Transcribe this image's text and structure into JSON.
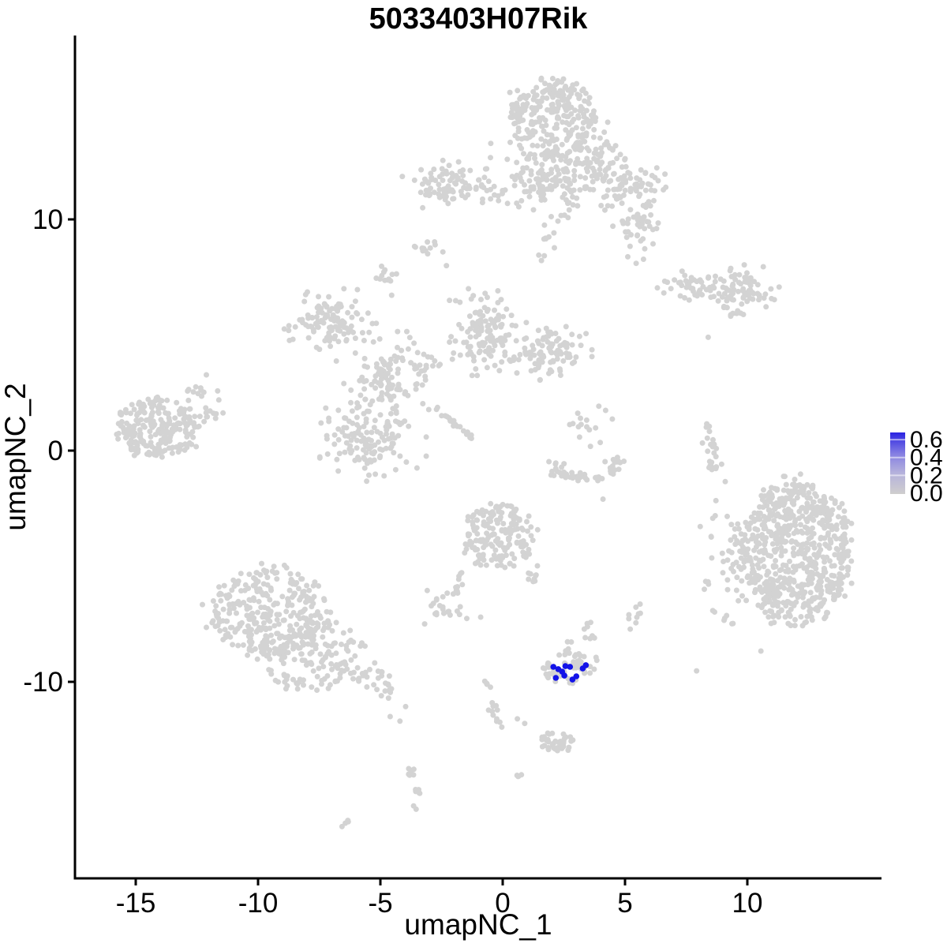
{
  "chart_data": {
    "type": "scatter",
    "title": "5033403H07Rik",
    "xlabel": "umapNC_1",
    "ylabel": "umapNC_2",
    "x_ticks": [
      -15,
      -10,
      -5,
      0,
      5,
      10
    ],
    "y_ticks": [
      10,
      0,
      -10
    ],
    "xlim": [
      -17.5,
      15.5
    ],
    "ylim": [
      -18.5,
      18.0
    ],
    "grid": false,
    "point_color_nonexpressing": "#D3D3D3",
    "point_color_expressing": "#1313E8",
    "legend": {
      "position": "right",
      "title": "",
      "tick_values": [
        0.6,
        0.4,
        0.2,
        0.0
      ],
      "tick_labels": [
        "0.6",
        "0.4",
        "0.2",
        "0.0"
      ],
      "range": [
        0.0,
        0.68
      ],
      "low_color": "#D3D3D3",
      "high_color": "#2B24E2",
      "gradient": [
        "#2B24E2",
        "#8680E2",
        "#B4B1DC",
        "#CFCECE"
      ]
    },
    "clusters": [
      {
        "kind": "disk",
        "x": 2.0,
        "y": 14.4,
        "rx": 1.8,
        "ry": 1.7,
        "n": 260
      },
      {
        "kind": "blob",
        "x": 2.0,
        "y": 11.8,
        "sx": 1.0,
        "sy": 0.75,
        "n": 150
      },
      {
        "kind": "blob",
        "x": 5.1,
        "y": 11.5,
        "sx": 0.7,
        "sy": 0.5,
        "n": 70
      },
      {
        "kind": "blob",
        "x": 5.5,
        "y": 9.6,
        "sx": 0.45,
        "sy": 0.6,
        "n": 45
      },
      {
        "kind": "trail",
        "pts": [
          [
            2.0,
            9.9
          ],
          [
            1.7,
            8.2
          ]
        ],
        "n": 10,
        "jitter": 0.2
      },
      {
        "kind": "blob",
        "x": 4.0,
        "y": 12.7,
        "sx": 0.6,
        "sy": 0.6,
        "n": 55
      },
      {
        "kind": "blob",
        "x": -2.2,
        "y": 11.5,
        "sx": 0.8,
        "sy": 0.42,
        "n": 85
      },
      {
        "kind": "trail",
        "pts": [
          [
            -1.2,
            11.3
          ],
          [
            1.7,
            11.4
          ]
        ],
        "n": 22,
        "jitter": 0.27
      },
      {
        "kind": "blob",
        "x": -3.0,
        "y": 8.7,
        "sx": 0.3,
        "sy": 0.18,
        "n": 12
      },
      {
        "kind": "blob",
        "x": 8.0,
        "y": 7.1,
        "sx": 0.7,
        "sy": 0.3,
        "n": 50
      },
      {
        "kind": "blob",
        "x": 9.9,
        "y": 7.0,
        "sx": 0.6,
        "sy": 0.45,
        "n": 70
      },
      {
        "kind": "trail",
        "pts": [
          [
            9.1,
            6.2
          ],
          [
            9.8,
            5.7
          ]
        ],
        "n": 9,
        "jitter": 0.1
      },
      {
        "kind": "dots",
        "pts": [
          [
            8.4,
            4.9
          ]
        ]
      },
      {
        "kind": "blob",
        "x": -4.8,
        "y": 7.5,
        "sx": 0.26,
        "sy": 0.38,
        "n": 13
      },
      {
        "kind": "blob",
        "x": -7.1,
        "y": 5.5,
        "sx": 0.78,
        "sy": 0.6,
        "n": 110
      },
      {
        "kind": "blob",
        "x": -0.8,
        "y": 5.2,
        "sx": 0.55,
        "sy": 0.78,
        "n": 110
      },
      {
        "kind": "blob",
        "x": 1.8,
        "y": 4.3,
        "sx": 0.74,
        "sy": 0.5,
        "n": 100
      },
      {
        "kind": "blob",
        "x": -4.7,
        "y": 3.1,
        "sx": 0.84,
        "sy": 0.82,
        "n": 115
      },
      {
        "kind": "trail",
        "pts": [
          [
            -3.8,
            3.5
          ],
          [
            -1.5,
            4.5
          ]
        ],
        "n": 18,
        "jitter": 0.27
      },
      {
        "kind": "trail",
        "pts": [
          [
            -0.6,
            3.8
          ],
          [
            0.7,
            4.1
          ]
        ],
        "n": 10,
        "jitter": 0.23
      },
      {
        "kind": "blob",
        "x": -5.3,
        "y": 0.5,
        "sx": 0.87,
        "sy": 0.75,
        "n": 130
      },
      {
        "kind": "trail",
        "pts": [
          [
            -2.7,
            1.8
          ],
          [
            -1.2,
            0.5
          ]
        ],
        "n": 22,
        "jitter": 0.06
      },
      {
        "kind": "disk",
        "x": -14.1,
        "y": 1.0,
        "rx": 1.75,
        "ry": 1.3,
        "n": 230
      },
      {
        "kind": "trail",
        "pts": [
          [
            -12.7,
            1.7
          ],
          [
            -11.4,
            1.5
          ]
        ],
        "n": 10,
        "jitter": 0.17
      },
      {
        "kind": "blob",
        "x": -12.5,
        "y": 2.6,
        "sx": 0.5,
        "sy": 0.27,
        "n": 13
      },
      {
        "kind": "trail",
        "pts": [
          [
            2.0,
            -0.5
          ],
          [
            2.5,
            -1.0
          ],
          [
            3.5,
            -1.25
          ],
          [
            4.35,
            -0.9
          ],
          [
            4.8,
            -0.25
          ]
        ],
        "n": 55,
        "jitter": 0.14
      },
      {
        "kind": "blob",
        "x": 3.5,
        "y": 0.9,
        "sx": 0.5,
        "sy": 0.6,
        "n": 16
      },
      {
        "kind": "trail",
        "pts": [
          [
            8.7,
            -0.9
          ],
          [
            8.4,
            1.2
          ]
        ],
        "n": 24,
        "jitter": 0.13
      },
      {
        "kind": "disk",
        "x": 12.0,
        "y": -4.4,
        "rx": 2.25,
        "ry": 3.1,
        "n": 680
      },
      {
        "kind": "blob",
        "x": 9.3,
        "y": -4.9,
        "sx": 0.55,
        "sy": 1.85,
        "n": 55
      },
      {
        "kind": "disk",
        "x": -0.2,
        "y": -3.7,
        "rx": 1.5,
        "ry": 1.35,
        "n": 170
      },
      {
        "kind": "trail",
        "pts": [
          [
            1.0,
            -4.4
          ],
          [
            1.3,
            -5.8
          ]
        ],
        "n": 11,
        "jitter": 0.13
      },
      {
        "kind": "trail",
        "pts": [
          [
            -1.5,
            -4.8
          ],
          [
            -2.0,
            -6.3
          ]
        ],
        "n": 9,
        "jitter": 0.1
      },
      {
        "kind": "blob",
        "x": -2.5,
        "y": -6.8,
        "sx": 0.42,
        "sy": 0.3,
        "n": 24
      },
      {
        "kind": "disk",
        "x": -9.6,
        "y": -7.0,
        "rx": 2.4,
        "ry": 2.0,
        "n": 290
      },
      {
        "kind": "disk",
        "x": -7.8,
        "y": -8.8,
        "rx": 2.3,
        "ry": 1.6,
        "n": 150
      },
      {
        "kind": "trail",
        "pts": [
          [
            -6.7,
            -9.4
          ],
          [
            -4.1,
            -10.5
          ]
        ],
        "n": 38,
        "jitter": 0.27
      },
      {
        "kind": "dots",
        "pts": [
          [
            -4.6,
            -11.5
          ],
          [
            -4.2,
            -11.7
          ]
        ]
      },
      {
        "kind": "blob",
        "x": 5.35,
        "y": -7.2,
        "sx": 0.2,
        "sy": 0.34,
        "n": 9
      },
      {
        "kind": "blob",
        "x": 3.6,
        "y": -7.65,
        "sx": 0.2,
        "sy": 0.3,
        "n": 8
      },
      {
        "kind": "disk",
        "x": 2.6,
        "y": -9.4,
        "rx": 1.05,
        "ry": 0.7,
        "n": 58
      },
      {
        "kind": "blob",
        "x": 2.7,
        "y": -8.6,
        "sx": 0.13,
        "sy": 0.17,
        "n": 5
      },
      {
        "kind": "blob",
        "x": 3.5,
        "y": -9.35,
        "sx": 0.2,
        "sy": 0.24,
        "n": 7
      },
      {
        "kind": "trail",
        "pts": [
          [
            -0.8,
            -9.4
          ],
          [
            -0.4,
            -11.1
          ],
          [
            0.0,
            -12.1
          ]
        ],
        "n": 16,
        "jitter": 0.13
      },
      {
        "kind": "disk",
        "x": 2.2,
        "y": -12.6,
        "rx": 0.68,
        "ry": 0.42,
        "n": 45
      },
      {
        "kind": "dots",
        "pts": [
          [
            0.6,
            -11.6
          ],
          [
            0.9,
            -11.8
          ]
        ]
      },
      {
        "kind": "trail",
        "pts": [
          [
            -3.7,
            -13.7
          ],
          [
            -3.5,
            -15.3
          ]
        ],
        "n": 13,
        "jitter": 0.12
      },
      {
        "kind": "trail",
        "pts": [
          [
            -6.6,
            -16.3
          ],
          [
            -6.3,
            -16.0
          ]
        ],
        "n": 4,
        "jitter": 0.03
      },
      {
        "kind": "trail",
        "pts": [
          [
            0.55,
            -14.1
          ],
          [
            0.8,
            -13.9
          ]
        ],
        "n": 4,
        "jitter": 0.03
      },
      {
        "kind": "dots",
        "pts": [
          [
            -0.9,
            -7.2
          ],
          [
            4.1,
            -2.1
          ],
          [
            -1.4,
            7.0
          ],
          [
            -2.3,
            8.0
          ]
        ]
      }
    ],
    "expressing_cells": [
      {
        "x": 2.07,
        "y": -9.35,
        "value": 0.6
      },
      {
        "x": 2.27,
        "y": -9.45,
        "value": 0.55
      },
      {
        "x": 2.43,
        "y": -9.56,
        "value": 0.6
      },
      {
        "x": 2.17,
        "y": -9.83,
        "value": 0.65
      },
      {
        "x": 2.52,
        "y": -9.73,
        "value": 0.6
      },
      {
        "x": 2.75,
        "y": -9.35,
        "value": 0.5
      },
      {
        "x": 2.85,
        "y": -9.9,
        "value": 0.6
      },
      {
        "x": 3.27,
        "y": -9.42,
        "value": 0.65
      },
      {
        "x": 3.4,
        "y": -9.28,
        "value": 0.6
      },
      {
        "x": 2.56,
        "y": -9.32,
        "value": 0.55
      },
      {
        "x": 3.01,
        "y": -9.76,
        "value": 0.6
      }
    ]
  }
}
